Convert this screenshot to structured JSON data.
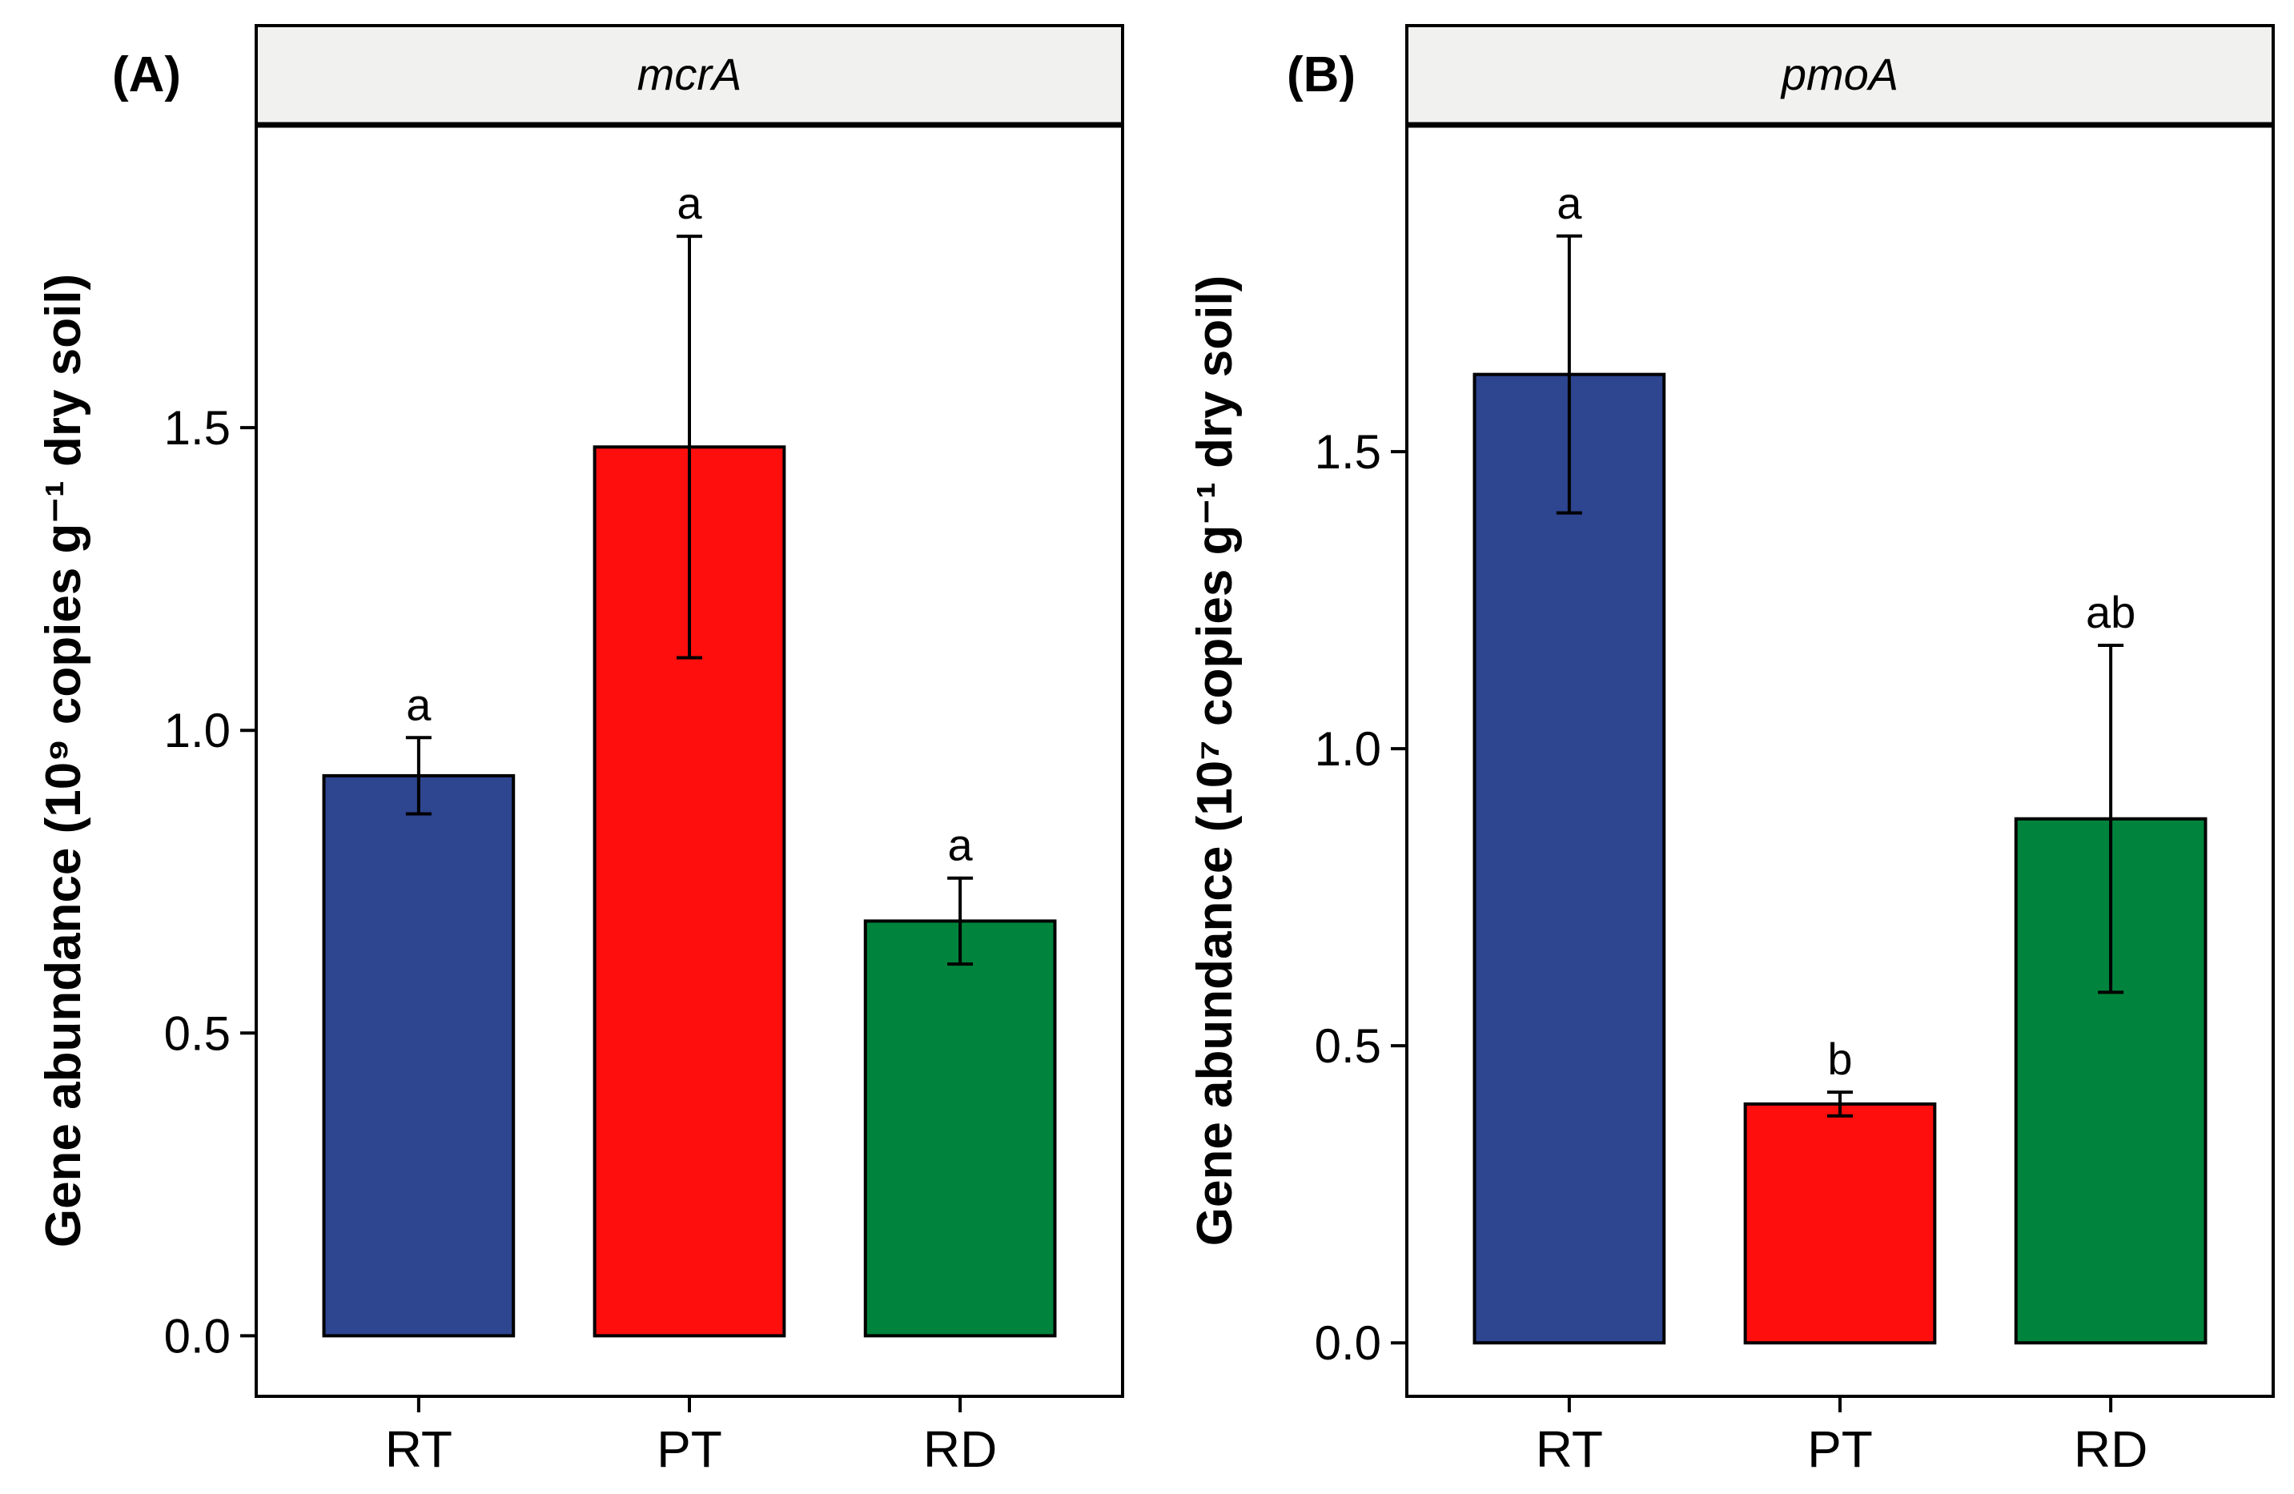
{
  "chart_data": [
    {
      "type": "bar",
      "panel_label": "(A)",
      "title": "mcrA",
      "ylabel": "Gene abundance (10⁹ copies g⁻¹ dry soil)",
      "xlabel": "",
      "categories": [
        "RT",
        "PT",
        "RD"
      ],
      "values": [
        0.925,
        1.468,
        0.685
      ],
      "error": [
        0.063,
        0.348,
        0.071
      ],
      "significance": [
        "a",
        "a",
        "a"
      ],
      "colors": [
        "#2e4590",
        "#ff0e0e",
        "#00843d"
      ],
      "ylim": [
        -0.1,
        2.0
      ],
      "yticks": [
        "0.0",
        "0.5",
        "1.0",
        "1.5"
      ],
      "grid": false
    },
    {
      "type": "bar",
      "panel_label": "(B)",
      "title": "pmoA",
      "ylabel": "Gene abundance (10⁷ copies g⁻¹ dry soil)",
      "xlabel": "",
      "categories": [
        "RT",
        "PT",
        "RD"
      ],
      "values": [
        1.63,
        0.402,
        0.882
      ],
      "error": [
        0.233,
        0.02,
        0.292
      ],
      "significance": [
        "a",
        "b",
        "ab"
      ],
      "colors": [
        "#2e4590",
        "#ff0e0e",
        "#00843d"
      ],
      "ylim": [
        -0.09,
        2.05
      ],
      "yticks": [
        "0.0",
        "0.5",
        "1.0",
        "1.5"
      ],
      "grid": false
    }
  ]
}
